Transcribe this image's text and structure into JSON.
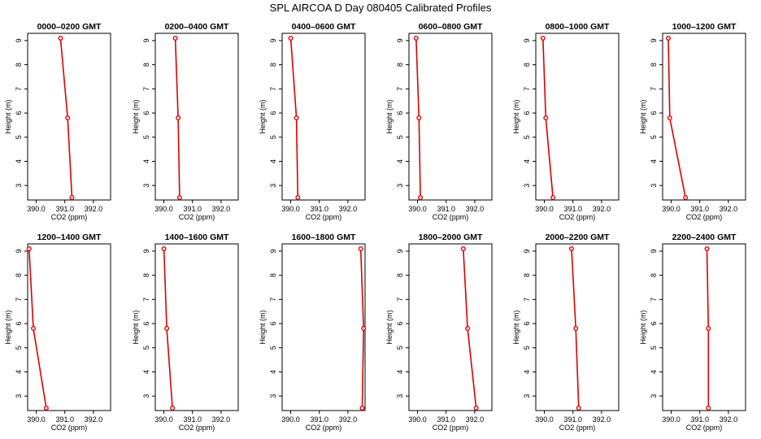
{
  "figure_title": "SPL AIRCOA D  Day 080405  Calibrated Profiles",
  "series_color": "#dd0000",
  "chart_data": [
    {
      "type": "line",
      "title": "0000–0200 GMT",
      "xlabel": "CO2 (ppm)",
      "ylabel": "Height (m)",
      "xlim": [
        389.7,
        392.6
      ],
      "ylim": [
        2.4,
        9.3
      ],
      "x": [
        390.85,
        391.1,
        391.25
      ],
      "y": [
        9.1,
        5.8,
        2.5
      ],
      "xticks": [
        "390.0",
        "391.0",
        "392.0"
      ],
      "yticks": [
        "3",
        "4",
        "5",
        "6",
        "7",
        "8",
        "9"
      ]
    },
    {
      "type": "line",
      "title": "0200–0400 GMT",
      "xlabel": "CO2 (ppm)",
      "ylabel": "Height (m)",
      "xlim": [
        389.7,
        392.6
      ],
      "ylim": [
        2.4,
        9.3
      ],
      "x": [
        390.4,
        390.5,
        390.55
      ],
      "y": [
        9.1,
        5.8,
        2.5
      ],
      "xticks": [
        "390.0",
        "391.0",
        "392.0"
      ],
      "yticks": [
        "3",
        "4",
        "5",
        "6",
        "7",
        "8",
        "9"
      ]
    },
    {
      "type": "line",
      "title": "0400–0600 GMT",
      "xlabel": "CO2 (ppm)",
      "ylabel": "Height (m)",
      "xlim": [
        389.7,
        392.6
      ],
      "ylim": [
        2.4,
        9.3
      ],
      "x": [
        390.0,
        390.2,
        390.25
      ],
      "y": [
        9.1,
        5.8,
        2.5
      ],
      "xticks": [
        "390.0",
        "391.0",
        "392.0"
      ],
      "yticks": [
        "3",
        "4",
        "5",
        "6",
        "7",
        "8",
        "9"
      ]
    },
    {
      "type": "line",
      "title": "0600–0800 GMT",
      "xlabel": "CO2 (ppm)",
      "ylabel": "Height (m)",
      "xlim": [
        389.7,
        392.6
      ],
      "ylim": [
        2.4,
        9.3
      ],
      "x": [
        389.95,
        390.05,
        390.1
      ],
      "y": [
        9.1,
        5.8,
        2.5
      ],
      "xticks": [
        "390.0",
        "391.0",
        "392.0"
      ],
      "yticks": [
        "3",
        "4",
        "5",
        "6",
        "7",
        "8",
        "9"
      ]
    },
    {
      "type": "line",
      "title": "0800–1000 GMT",
      "xlabel": "CO2 (ppm)",
      "ylabel": "Height (m)",
      "xlim": [
        389.7,
        392.6
      ],
      "ylim": [
        2.4,
        9.3
      ],
      "x": [
        389.95,
        390.05,
        390.3
      ],
      "y": [
        9.1,
        5.8,
        2.5
      ],
      "xticks": [
        "390.0",
        "391.0",
        "392.0"
      ],
      "yticks": [
        "3",
        "4",
        "5",
        "6",
        "7",
        "8",
        "9"
      ]
    },
    {
      "type": "line",
      "title": "1000–1200 GMT",
      "xlabel": "CO2 (ppm)",
      "ylabel": "Height (m)",
      "xlim": [
        389.7,
        392.6
      ],
      "ylim": [
        2.4,
        9.3
      ],
      "x": [
        389.9,
        389.95,
        390.5
      ],
      "y": [
        9.1,
        5.8,
        2.5
      ],
      "xticks": [
        "390.0",
        "391.0",
        "392.0"
      ],
      "yticks": [
        "3",
        "4",
        "5",
        "6",
        "7",
        "8",
        "9"
      ]
    },
    {
      "type": "line",
      "title": "1200–1400 GMT",
      "xlabel": "CO2 (ppm)",
      "ylabel": "Height (m)",
      "xlim": [
        389.7,
        392.6
      ],
      "ylim": [
        2.4,
        9.3
      ],
      "x": [
        389.75,
        389.9,
        390.35
      ],
      "y": [
        9.1,
        5.8,
        2.5
      ],
      "xticks": [
        "390.0",
        "391.0",
        "392.0"
      ],
      "yticks": [
        "3",
        "4",
        "5",
        "6",
        "7",
        "8",
        "9"
      ]
    },
    {
      "type": "line",
      "title": "1400–1600 GMT",
      "xlabel": "CO2 (ppm)",
      "ylabel": "Height (m)",
      "xlim": [
        389.7,
        392.6
      ],
      "ylim": [
        2.4,
        9.3
      ],
      "x": [
        390.0,
        390.1,
        390.3
      ],
      "y": [
        9.1,
        5.8,
        2.5
      ],
      "xticks": [
        "390.0",
        "391.0",
        "392.0"
      ],
      "yticks": [
        "3",
        "4",
        "5",
        "6",
        "7",
        "8",
        "9"
      ]
    },
    {
      "type": "line",
      "title": "1600–1800 GMT",
      "xlabel": "CO2 (ppm)",
      "ylabel": "Height (m)",
      "xlim": [
        389.7,
        392.6
      ],
      "ylim": [
        2.4,
        9.3
      ],
      "x": [
        392.45,
        392.55,
        392.5
      ],
      "y": [
        9.1,
        5.8,
        2.5
      ],
      "xticks": [
        "390.0",
        "391.0",
        "392.0"
      ],
      "yticks": [
        "3",
        "4",
        "5",
        "6",
        "7",
        "8",
        "9"
      ]
    },
    {
      "type": "line",
      "title": "1800–2000 GMT",
      "xlabel": "CO2 (ppm)",
      "ylabel": "Height (m)",
      "xlim": [
        389.7,
        392.6
      ],
      "ylim": [
        2.4,
        9.3
      ],
      "x": [
        391.6,
        391.75,
        392.05
      ],
      "y": [
        9.1,
        5.8,
        2.5
      ],
      "xticks": [
        "390.0",
        "391.0",
        "392.0"
      ],
      "yticks": [
        "3",
        "4",
        "5",
        "6",
        "7",
        "8",
        "9"
      ]
    },
    {
      "type": "line",
      "title": "2000–2200 GMT",
      "xlabel": "CO2 (ppm)",
      "ylabel": "Height (m)",
      "xlim": [
        389.7,
        392.6
      ],
      "ylim": [
        2.4,
        9.3
      ],
      "x": [
        390.95,
        391.1,
        391.2
      ],
      "y": [
        9.1,
        5.8,
        2.5
      ],
      "xticks": [
        "390.0",
        "391.0",
        "392.0"
      ],
      "yticks": [
        "3",
        "4",
        "5",
        "6",
        "7",
        "8",
        "9"
      ]
    },
    {
      "type": "line",
      "title": "2200–2400 GMT",
      "xlabel": "CO2 (ppm)",
      "ylabel": "Height (m)",
      "xlim": [
        389.7,
        392.6
      ],
      "ylim": [
        2.4,
        9.3
      ],
      "x": [
        391.25,
        391.3,
        391.3
      ],
      "y": [
        9.1,
        5.8,
        2.5
      ],
      "xticks": [
        "390.0",
        "391.0",
        "392.0"
      ],
      "yticks": [
        "3",
        "4",
        "5",
        "6",
        "7",
        "8",
        "9"
      ]
    }
  ]
}
